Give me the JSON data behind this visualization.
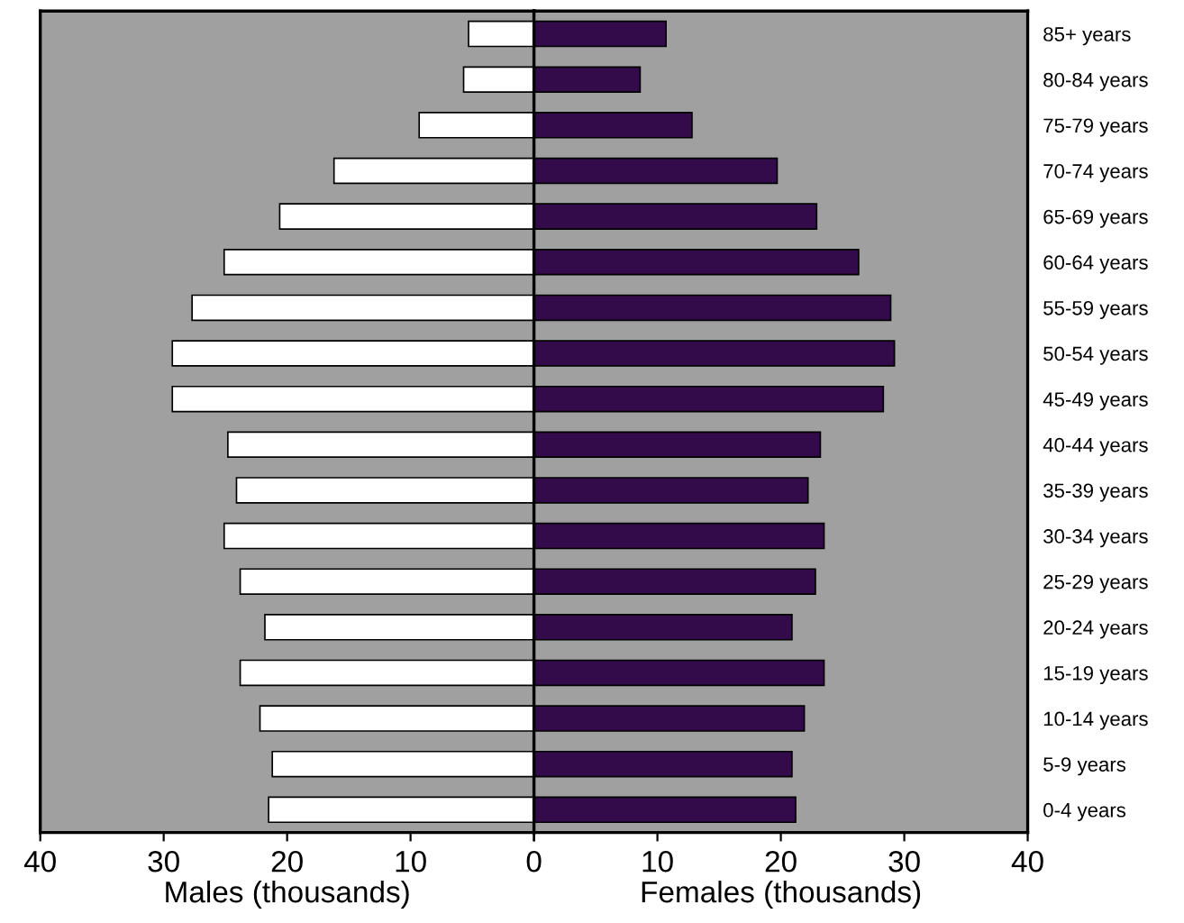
{
  "chart_data": [
    {
      "type": "bar",
      "orientation": "horizontal",
      "xlabel": "Males (thousands)",
      "tick_labels": "x",
      "categories": [
        null,
        null,
        null,
        null,
        null,
        null,
        null,
        null,
        null,
        null,
        null,
        null,
        null,
        null,
        null,
        null,
        null,
        null
      ],
      "series": [
        {
          "color": "#ffffff",
          "values": [
            5.3,
            5.7,
            9.3,
            16.2,
            20.6,
            25.1,
            27.7,
            29.3,
            29.3,
            24.8,
            24.1,
            25.1,
            23.8,
            21.8,
            23.8,
            22.2,
            21.2,
            21.5
          ]
        }
      ],
      "xlim": [
        40,
        0
      ],
      "xticks": [
        40,
        30,
        20,
        10,
        {
          "value": 0,
          "label": null
        }
      ]
    },
    {
      "type": "bar",
      "orientation": "horizontal",
      "xlabel": "Females (thousands)",
      "categories": [
        "85+ years",
        "80-84 years",
        "75-79 years",
        "70-74 years",
        "65-69 years",
        "60-64 years",
        "55-59 years",
        "50-54 years",
        "45-49 years",
        "40-44 years",
        "35-39 years",
        "30-34 years",
        "25-29 years",
        "20-24 years",
        "15-19 years",
        "10-14 years",
        "5-9 years",
        "0-4 years"
      ],
      "series": [
        {
          "color": "#330a4a",
          "values": [
            10.7,
            8.6,
            12.8,
            19.7,
            22.9,
            26.3,
            28.9,
            29.2,
            28.3,
            23.2,
            22.2,
            23.5,
            22.8,
            20.9,
            23.5,
            21.9,
            20.9,
            21.2
          ]
        }
      ],
      "xlim": [
        0,
        40
      ],
      "xticks": [
        0,
        10,
        20,
        30,
        40
      ]
    }
  ]
}
